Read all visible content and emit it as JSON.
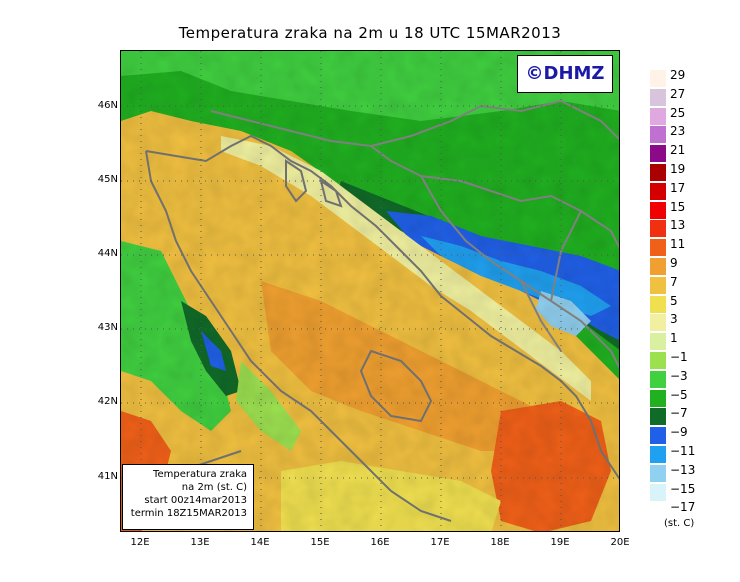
{
  "title": "Temperatura zraka na 2m  u  18  UTC  15MAR2013",
  "logo_text": "©DHMZ",
  "info_box": {
    "line1": "Temperatura zraka",
    "line2": "na 2m (st. C)",
    "line3": "start 00z14mar2013",
    "line4": "termin 18Z15MAR2013"
  },
  "lat_labels": [
    "46N",
    "45N",
    "44N",
    "43N",
    "42N",
    "41N"
  ],
  "lon_labels": [
    "12E",
    "13E",
    "14E",
    "15E",
    "16E",
    "17E",
    "18E",
    "19E",
    "20E"
  ],
  "legend": {
    "labels": [
      "29",
      "27",
      "25",
      "23",
      "21",
      "19",
      "17",
      "15",
      "13",
      "11",
      "9",
      "7",
      "5",
      "3",
      "1",
      "−1",
      "−3",
      "−5",
      "−7",
      "−9",
      "−11",
      "−13",
      "−15",
      "−17"
    ],
    "colors": [
      "#fff2e6",
      "#d8c4dc",
      "#e0a8e0",
      "#c070d0",
      "#8a0a8a",
      "#aa0000",
      "#d40000",
      "#f00000",
      "#f03010",
      "#f06018",
      "#f0a030",
      "#f0c040",
      "#f0e050",
      "#f0f0a0",
      "#d8f0a0",
      "#9ce050",
      "#40d040",
      "#20b020",
      "#106a28",
      "#2060e8",
      "#20a0f0",
      "#90d0f0",
      "#d8f4f8",
      "#ffffff"
    ],
    "units": "(st. C)"
  }
}
